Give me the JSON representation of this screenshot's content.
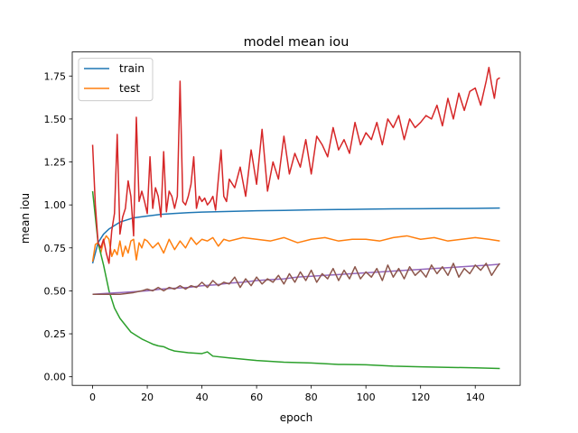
{
  "chart_data": {
    "type": "line",
    "title": "model mean iou",
    "xlabel": "epoch",
    "ylabel": "mean iou",
    "xlim": [
      -7.45,
      156.45
    ],
    "ylim": [
      -0.05,
      1.89
    ],
    "xticks": [
      0,
      20,
      40,
      60,
      80,
      100,
      120,
      140
    ],
    "yticks": [
      0.0,
      0.25,
      0.5,
      0.75,
      1.0,
      1.25,
      1.5,
      1.75
    ],
    "ytick_labels": [
      "0.00",
      "0.25",
      "0.50",
      "0.75",
      "1.00",
      "1.25",
      "1.50",
      "1.75"
    ],
    "grid": false,
    "legend": {
      "position": "top-left",
      "entries": [
        "train",
        "test"
      ]
    },
    "series": [
      {
        "name": "train",
        "color": "#1f77b4",
        "x": [
          0,
          2,
          4,
          6,
          8,
          10,
          12,
          15,
          20,
          25,
          30,
          35,
          40,
          45,
          50,
          60,
          70,
          80,
          90,
          100,
          110,
          120,
          130,
          140,
          149
        ],
        "y": [
          0.66,
          0.78,
          0.83,
          0.86,
          0.88,
          0.9,
          0.91,
          0.925,
          0.935,
          0.945,
          0.95,
          0.955,
          0.958,
          0.96,
          0.962,
          0.966,
          0.968,
          0.971,
          0.973,
          0.975,
          0.977,
          0.978,
          0.979,
          0.98,
          0.982
        ]
      },
      {
        "name": "test",
        "color": "#ff7f0e",
        "x": [
          0,
          1,
          2,
          3,
          4,
          5,
          6,
          7,
          8,
          9,
          10,
          11,
          12,
          13,
          14,
          15,
          16,
          17,
          18,
          19,
          20,
          22,
          24,
          26,
          28,
          30,
          32,
          34,
          36,
          38,
          40,
          42,
          44,
          46,
          48,
          50,
          55,
          60,
          65,
          70,
          75,
          80,
          85,
          90,
          95,
          100,
          105,
          110,
          115,
          120,
          125,
          130,
          135,
          140,
          145,
          149
        ],
        "y": [
          0.67,
          0.77,
          0.78,
          0.72,
          0.79,
          0.82,
          0.8,
          0.7,
          0.74,
          0.71,
          0.79,
          0.7,
          0.76,
          0.72,
          0.79,
          0.8,
          0.68,
          0.78,
          0.75,
          0.8,
          0.79,
          0.75,
          0.78,
          0.72,
          0.8,
          0.74,
          0.79,
          0.75,
          0.81,
          0.77,
          0.8,
          0.79,
          0.81,
          0.76,
          0.8,
          0.79,
          0.81,
          0.8,
          0.79,
          0.81,
          0.78,
          0.8,
          0.81,
          0.79,
          0.8,
          0.8,
          0.79,
          0.81,
          0.82,
          0.8,
          0.81,
          0.79,
          0.8,
          0.81,
          0.8,
          0.79
        ]
      },
      {
        "color": "#2ca02c",
        "x": [
          0,
          2,
          4,
          6,
          8,
          10,
          12,
          14,
          16,
          18,
          20,
          22,
          24,
          26,
          28,
          30,
          35,
          40,
          42,
          44,
          50,
          60,
          70,
          80,
          90,
          100,
          110,
          120,
          130,
          140,
          149
        ],
        "y": [
          1.08,
          0.78,
          0.65,
          0.5,
          0.4,
          0.34,
          0.3,
          0.26,
          0.24,
          0.22,
          0.205,
          0.19,
          0.18,
          0.175,
          0.16,
          0.15,
          0.14,
          0.135,
          0.145,
          0.12,
          0.11,
          0.095,
          0.085,
          0.08,
          0.072,
          0.07,
          0.062,
          0.058,
          0.055,
          0.052,
          0.048
        ]
      },
      {
        "color": "#d62728",
        "x": [
          0,
          1,
          2,
          3,
          4,
          5,
          6,
          7,
          8,
          9,
          10,
          11,
          12,
          13,
          14,
          15,
          16,
          17,
          18,
          19,
          20,
          21,
          22,
          23,
          24,
          25,
          26,
          27,
          28,
          29,
          30,
          31,
          32,
          33,
          34,
          35,
          36,
          37,
          38,
          39,
          40,
          41,
          42,
          43,
          44,
          45,
          46,
          47,
          48,
          49,
          50,
          52,
          54,
          56,
          58,
          60,
          62,
          64,
          66,
          68,
          70,
          72,
          74,
          76,
          78,
          80,
          82,
          84,
          86,
          88,
          90,
          92,
          94,
          96,
          98,
          100,
          102,
          104,
          106,
          108,
          110,
          112,
          114,
          116,
          118,
          120,
          122,
          124,
          126,
          128,
          130,
          132,
          134,
          136,
          138,
          140,
          142,
          144,
          145,
          146,
          147,
          148,
          149
        ],
        "y": [
          1.35,
          1.0,
          0.78,
          0.75,
          0.8,
          0.72,
          0.66,
          0.85,
          0.95,
          1.41,
          0.83,
          0.93,
          0.98,
          1.14,
          1.05,
          0.82,
          1.51,
          1.02,
          1.08,
          1.02,
          0.95,
          1.28,
          0.98,
          1.1,
          1.05,
          0.93,
          1.31,
          0.96,
          1.08,
          1.05,
          0.98,
          1.05,
          1.72,
          1.02,
          1.0,
          1.05,
          1.12,
          1.28,
          0.98,
          1.05,
          1.02,
          1.04,
          1.0,
          1.02,
          1.05,
          0.97,
          1.15,
          1.32,
          1.05,
          1.02,
          1.15,
          1.1,
          1.22,
          1.05,
          1.32,
          1.12,
          1.44,
          1.08,
          1.25,
          1.15,
          1.4,
          1.18,
          1.3,
          1.22,
          1.38,
          1.18,
          1.4,
          1.35,
          1.28,
          1.45,
          1.32,
          1.38,
          1.3,
          1.48,
          1.35,
          1.42,
          1.38,
          1.48,
          1.35,
          1.5,
          1.45,
          1.52,
          1.38,
          1.5,
          1.45,
          1.48,
          1.52,
          1.5,
          1.58,
          1.46,
          1.62,
          1.5,
          1.65,
          1.55,
          1.66,
          1.68,
          1.58,
          1.72,
          1.8,
          1.7,
          1.62,
          1.73,
          1.74
        ]
      },
      {
        "color": "#9467bd",
        "x": [
          0,
          5,
          10,
          15,
          20,
          25,
          30,
          35,
          40,
          45,
          50,
          55,
          60,
          65,
          70,
          75,
          80,
          85,
          90,
          95,
          100,
          105,
          110,
          115,
          120,
          125,
          130,
          135,
          140,
          145,
          149
        ],
        "y": [
          0.48,
          0.485,
          0.49,
          0.495,
          0.5,
          0.51,
          0.515,
          0.52,
          0.53,
          0.535,
          0.545,
          0.55,
          0.56,
          0.565,
          0.57,
          0.58,
          0.585,
          0.59,
          0.595,
          0.6,
          0.605,
          0.61,
          0.615,
          0.62,
          0.625,
          0.63,
          0.635,
          0.64,
          0.645,
          0.65,
          0.655
        ]
      },
      {
        "color": "#8c564b",
        "x": [
          0,
          5,
          10,
          15,
          18,
          20,
          22,
          24,
          26,
          28,
          30,
          32,
          34,
          36,
          38,
          40,
          42,
          44,
          46,
          48,
          50,
          52,
          54,
          56,
          58,
          60,
          62,
          64,
          66,
          68,
          70,
          72,
          74,
          76,
          78,
          80,
          82,
          84,
          86,
          88,
          90,
          92,
          94,
          96,
          98,
          100,
          102,
          104,
          106,
          108,
          110,
          112,
          114,
          116,
          118,
          120,
          122,
          124,
          126,
          128,
          130,
          132,
          134,
          136,
          138,
          140,
          142,
          144,
          146,
          148,
          149
        ],
        "y": [
          0.48,
          0.48,
          0.48,
          0.49,
          0.5,
          0.51,
          0.5,
          0.52,
          0.5,
          0.52,
          0.51,
          0.53,
          0.51,
          0.53,
          0.52,
          0.55,
          0.52,
          0.56,
          0.53,
          0.55,
          0.54,
          0.58,
          0.52,
          0.57,
          0.53,
          0.58,
          0.54,
          0.57,
          0.55,
          0.59,
          0.54,
          0.6,
          0.55,
          0.61,
          0.56,
          0.62,
          0.55,
          0.6,
          0.57,
          0.63,
          0.56,
          0.62,
          0.57,
          0.64,
          0.57,
          0.61,
          0.58,
          0.63,
          0.56,
          0.65,
          0.58,
          0.63,
          0.57,
          0.64,
          0.59,
          0.62,
          0.58,
          0.65,
          0.6,
          0.64,
          0.59,
          0.66,
          0.58,
          0.63,
          0.6,
          0.65,
          0.62,
          0.66,
          0.59,
          0.64,
          0.66
        ]
      }
    ]
  }
}
